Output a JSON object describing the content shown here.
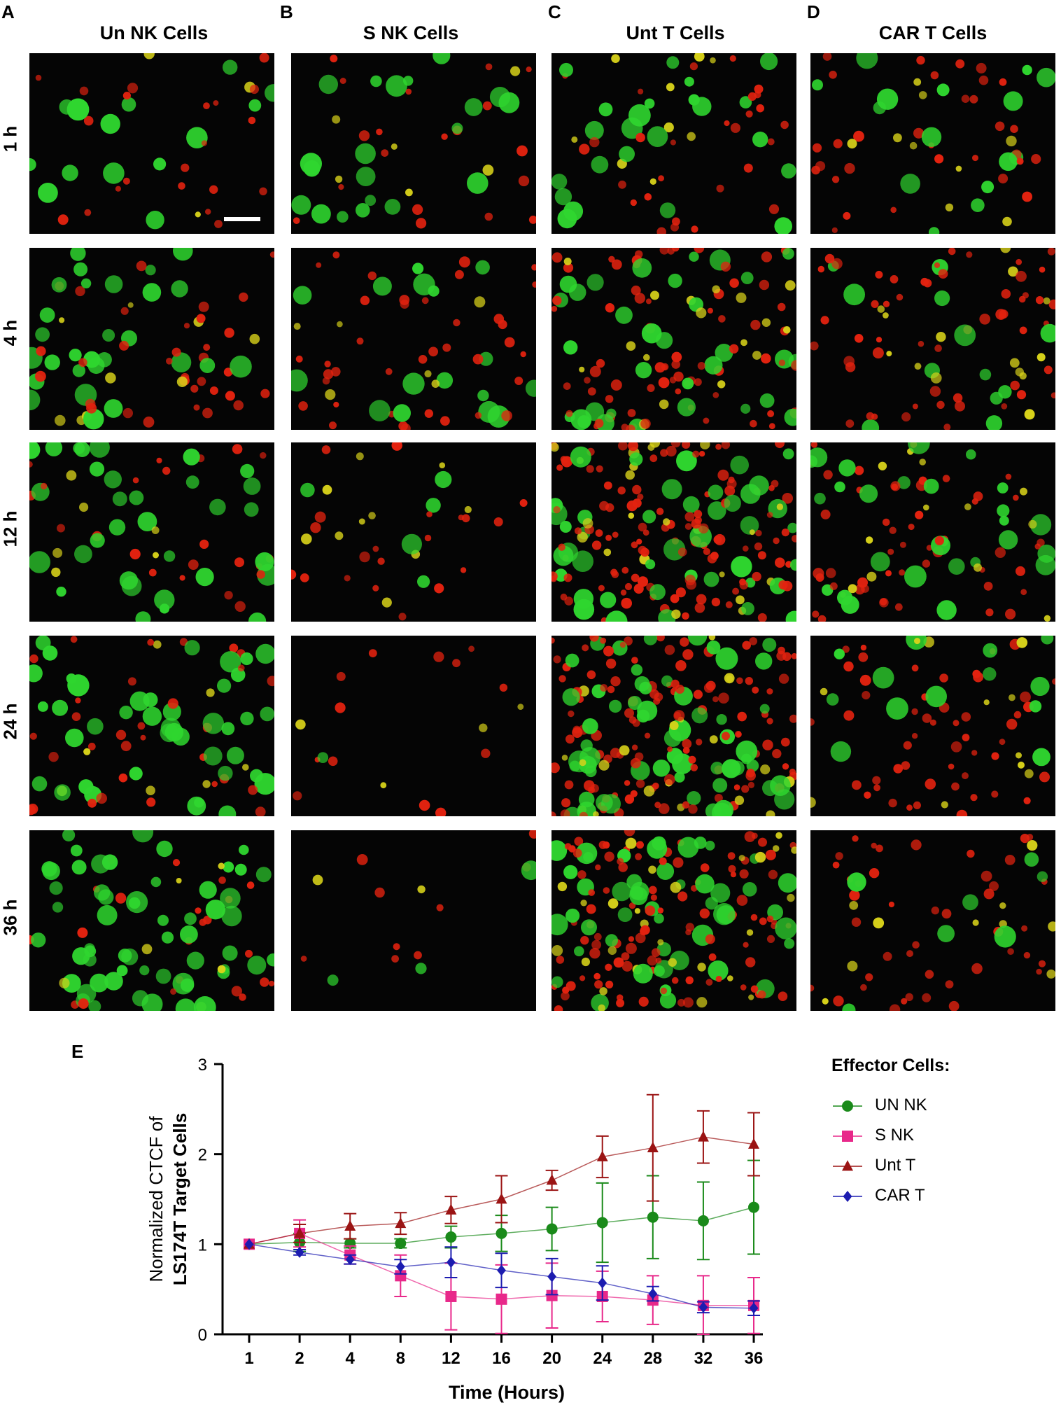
{
  "panels": {
    "A": {
      "letter": "A",
      "title": "Un NK Cells"
    },
    "B": {
      "letter": "B",
      "title": "S NK Cells"
    },
    "C": {
      "letter": "C",
      "title": "Unt T Cells"
    },
    "D": {
      "letter": "D",
      "title": "CAR T Cells"
    },
    "E": {
      "letter": "E"
    }
  },
  "rows": [
    "1 h",
    "4 h",
    "12 h",
    "24 h",
    "36 h"
  ],
  "micrograph_colors": {
    "live_target": "#2fd62f",
    "dead_effector": "#e3220f",
    "overlap": "#d8d21a",
    "background": "#050505"
  },
  "scale_bar_color": "#ffffff",
  "chart_data": {
    "type": "line",
    "xlabel": "Time (Hours)",
    "ylabel_line1": "Normalized CTCF of",
    "ylabel_line2": "LS174T Target Cells",
    "categories": [
      "1",
      "2",
      "4",
      "8",
      "12",
      "16",
      "20",
      "24",
      "28",
      "32",
      "36"
    ],
    "ylim": [
      0,
      3
    ],
    "yticks": [
      "0",
      "1",
      "2",
      "3"
    ],
    "legend_title": "Effector Cells:",
    "legend_position": "right",
    "series": [
      {
        "name": "UN NK",
        "color": "#1a8a1a",
        "marker": "circle",
        "values": [
          1.0,
          1.02,
          1.01,
          1.01,
          1.08,
          1.12,
          1.17,
          1.24,
          1.3,
          1.26,
          1.41
        ],
        "errors": [
          0.0,
          0.1,
          0.05,
          0.05,
          0.12,
          0.2,
          0.24,
          0.44,
          0.46,
          0.43,
          0.52
        ]
      },
      {
        "name": "S NK",
        "color": "#e8288a",
        "marker": "square",
        "values": [
          1.0,
          1.12,
          0.88,
          0.65,
          0.42,
          0.39,
          0.43,
          0.42,
          0.38,
          0.32,
          0.32
        ],
        "errors": [
          0.0,
          0.15,
          0.1,
          0.23,
          0.37,
          0.38,
          0.36,
          0.28,
          0.27,
          0.33,
          0.31
        ]
      },
      {
        "name": "Unt T",
        "color": "#9b1414",
        "marker": "triangle",
        "values": [
          1.0,
          1.12,
          1.2,
          1.23,
          1.38,
          1.5,
          1.71,
          1.97,
          2.07,
          2.19,
          2.11
        ],
        "errors": [
          0.0,
          0.1,
          0.14,
          0.12,
          0.15,
          0.26,
          0.11,
          0.23,
          0.59,
          0.29,
          0.35
        ]
      },
      {
        "name": "CAR T",
        "color": "#1c1cb0",
        "marker": "diamond",
        "values": [
          1.0,
          0.91,
          0.83,
          0.75,
          0.8,
          0.71,
          0.64,
          0.57,
          0.45,
          0.3,
          0.29
        ],
        "errors": [
          0.0,
          0.03,
          0.05,
          0.08,
          0.17,
          0.19,
          0.2,
          0.19,
          0.08,
          0.06,
          0.08
        ]
      }
    ]
  }
}
